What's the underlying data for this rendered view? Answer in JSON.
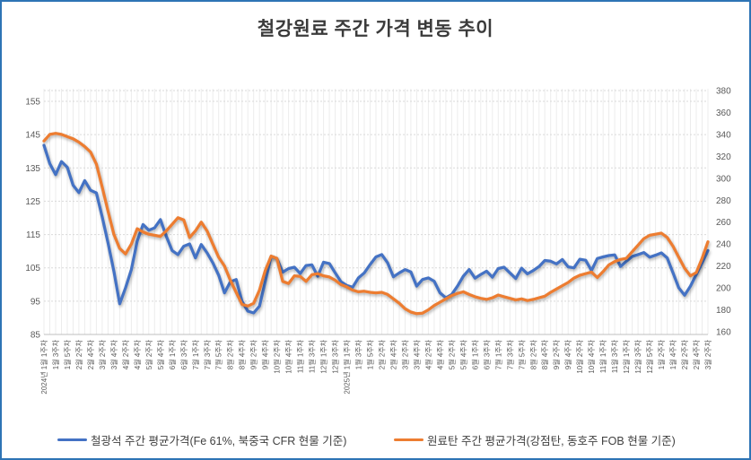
{
  "frame": {
    "border_color": "#2E74B5",
    "background": "#FFFFFF"
  },
  "chart_data": {
    "type": "line",
    "title": "철강원료 주간 가격 변동 추이",
    "x_label_every": 2,
    "grid": {
      "h_gridline_color": "#D9D9D9",
      "stripe_color": "#ECECEC",
      "axis_line_color": "#BFBFBF",
      "tick_label_color": "#595959"
    },
    "left_axis": {
      "min": 85,
      "max": 155,
      "step": 10,
      "ticks_top_down": [
        155,
        145,
        135,
        125,
        115,
        105,
        95,
        85
      ]
    },
    "right_axis": {
      "min": 160,
      "max": 380,
      "step": 20,
      "ticks_top_down": [
        380,
        360,
        340,
        320,
        300,
        280,
        260,
        240,
        220,
        200,
        180,
        160
      ]
    },
    "categories": [
      "2024년 1월 1주차",
      "1월 2주차",
      "1월 3주차",
      "1월 4주차",
      "1월 5주차",
      "2월 1주차",
      "2월 2주차",
      "2월 3주차",
      "2월 4주차",
      "3월 1주차",
      "3월 2주차",
      "3월 3주차",
      "3월 4주차",
      "4월 1주차",
      "4월 2주차",
      "4월 3주차",
      "4월 4주차",
      "5월 1주차",
      "5월 2주차",
      "5월 3주차",
      "5월 4주차",
      "5월 5주차",
      "6월 1주차",
      "6월 2주차",
      "6월 3주차",
      "6월 4주차",
      "7월 1주차",
      "7월 2주차",
      "7월 3주차",
      "7월 4주차",
      "7월 5주차",
      "8월 1주차",
      "8월 2주차",
      "8월 3주차",
      "8월 4주차",
      "9월 1주차",
      "9월 2주차",
      "9월 3주차",
      "9월 4주차",
      "10월 1주차",
      "10월 2주차",
      "10월 3주차",
      "10월 4주차",
      "10월 5주차",
      "11월 1주차",
      "11월 2주차",
      "11월 3주차",
      "11월 4주차",
      "12월 1주차",
      "12월 2주차",
      "12월 3주차",
      "12월 4주차",
      "2025년 1월 1주차",
      "1월 2주차",
      "1월 3주차",
      "1월 4주차",
      "1월 5주차",
      "2월 1주차",
      "2월 2주차",
      "2월 3주차",
      "2월 4주차",
      "3월 1주차",
      "3월 2주차",
      "3월 3주차",
      "3월 4주차",
      "4월 1주차",
      "4월 2주차",
      "4월 3주차",
      "4월 4주차",
      "5월 1주차",
      "5월 2주차",
      "5월 3주차",
      "5월 4주차",
      "5월 5주차",
      "6월 1주차",
      "6월 2주차",
      "6월 3주차",
      "6월 4주차",
      "7월 1주차",
      "7월 2주차",
      "7월 3주차",
      "7월 4주차",
      "7월 5주차",
      "8월 1주차",
      "8월 2주차",
      "8월 3주차",
      "8월 4주차",
      "9월 1주차",
      "9월 2주차",
      "9월 3주차",
      "9월 4주차",
      "10월 1주차",
      "10월 2주차",
      "10월 3주차",
      "10월 4주차",
      "10월 5주차",
      "11월 1주차",
      "11월 2주차",
      "11월 3주차",
      "11월 4주차",
      "12월 1주차",
      "12월 2주차",
      "12월 3주차",
      "12월 4주차",
      "12월 5주차",
      "2026년 1월 1주차",
      "1월 2주차",
      "1월 3주차",
      "1월 4주차",
      "2월 1주차",
      "2월 2주차",
      "2월 3주차",
      "2월 4주차",
      "3월 1주차",
      "3월 2주차"
    ],
    "series": [
      {
        "name": "철광석 주간 평균가격(Fe 61%, 북중국 CFR 현물 기준)",
        "axis": "left",
        "color": "#4472C4",
        "values": [
          141.8,
          136.3,
          133.0,
          136.9,
          135.2,
          129.8,
          127.6,
          131.2,
          128.3,
          127.5,
          120.3,
          112.5,
          104.0,
          94.2,
          99.0,
          104.5,
          113.0,
          118.0,
          116.3,
          117.0,
          119.5,
          114.5,
          110.2,
          109.0,
          111.5,
          112.2,
          108.0,
          112.0,
          109.5,
          106.5,
          102.8,
          97.5,
          100.8,
          101.5,
          95.0,
          92.0,
          91.5,
          93.5,
          101.0,
          108.5,
          107.8,
          103.7,
          104.8,
          105.2,
          103.3,
          105.7,
          105.9,
          102.5,
          106.7,
          106.3,
          103.5,
          100.8,
          99.7,
          99.2,
          102.0,
          103.5,
          106.0,
          108.3,
          109.0,
          106.5,
          102.3,
          103.5,
          104.5,
          103.8,
          99.5,
          101.5,
          102.0,
          101.0,
          97.5,
          96.0,
          97.0,
          99.5,
          102.5,
          104.5,
          101.9,
          103.0,
          104.0,
          102.2,
          104.8,
          105.2,
          103.5,
          101.8,
          104.9,
          103.2,
          104.2,
          105.4,
          107.2,
          107.0,
          106.2,
          107.5,
          105.3,
          105.0,
          107.6,
          107.3,
          104.2,
          107.8,
          108.3,
          108.7,
          108.9,
          105.4,
          107.0,
          108.4,
          109.0,
          109.6,
          108.2,
          108.8,
          109.5,
          108.0,
          103.5,
          99.0,
          96.8,
          99.5,
          103.0,
          106.5,
          110.2
        ]
      },
      {
        "name": "원료탄 주간 평균가격(강점탄, 동호주 FOB 현물 기준)",
        "axis": "right",
        "color": "#ED7D31",
        "values": [
          334,
          340,
          341,
          340,
          338,
          336,
          333,
          329,
          324,
          313,
          292,
          270,
          249,
          236,
          231,
          240,
          254,
          251,
          249,
          248,
          247,
          252,
          258,
          264,
          262,
          246,
          252,
          260,
          252,
          240,
          228,
          220,
          207,
          196,
          185,
          183.5,
          186,
          198,
          216,
          229,
          227,
          206,
          204,
          211,
          210.5,
          206,
          212,
          213,
          211,
          210,
          207,
          203,
          201,
          198,
          196.5,
          197,
          196,
          195.5,
          196,
          194,
          190,
          186,
          181,
          178,
          176.5,
          177,
          180,
          184,
          187,
          190,
          193,
          195,
          196.5,
          194,
          192,
          190.5,
          189.5,
          191,
          193.5,
          192,
          190.5,
          189,
          190,
          188.5,
          189.5,
          191,
          192.5,
          196,
          199,
          202,
          205,
          209,
          211.5,
          213,
          214.5,
          209.5,
          215,
          221,
          224,
          226,
          227,
          233,
          239,
          245,
          248,
          249,
          250,
          246,
          238,
          228,
          218,
          211,
          214,
          227,
          242
        ]
      }
    ]
  }
}
